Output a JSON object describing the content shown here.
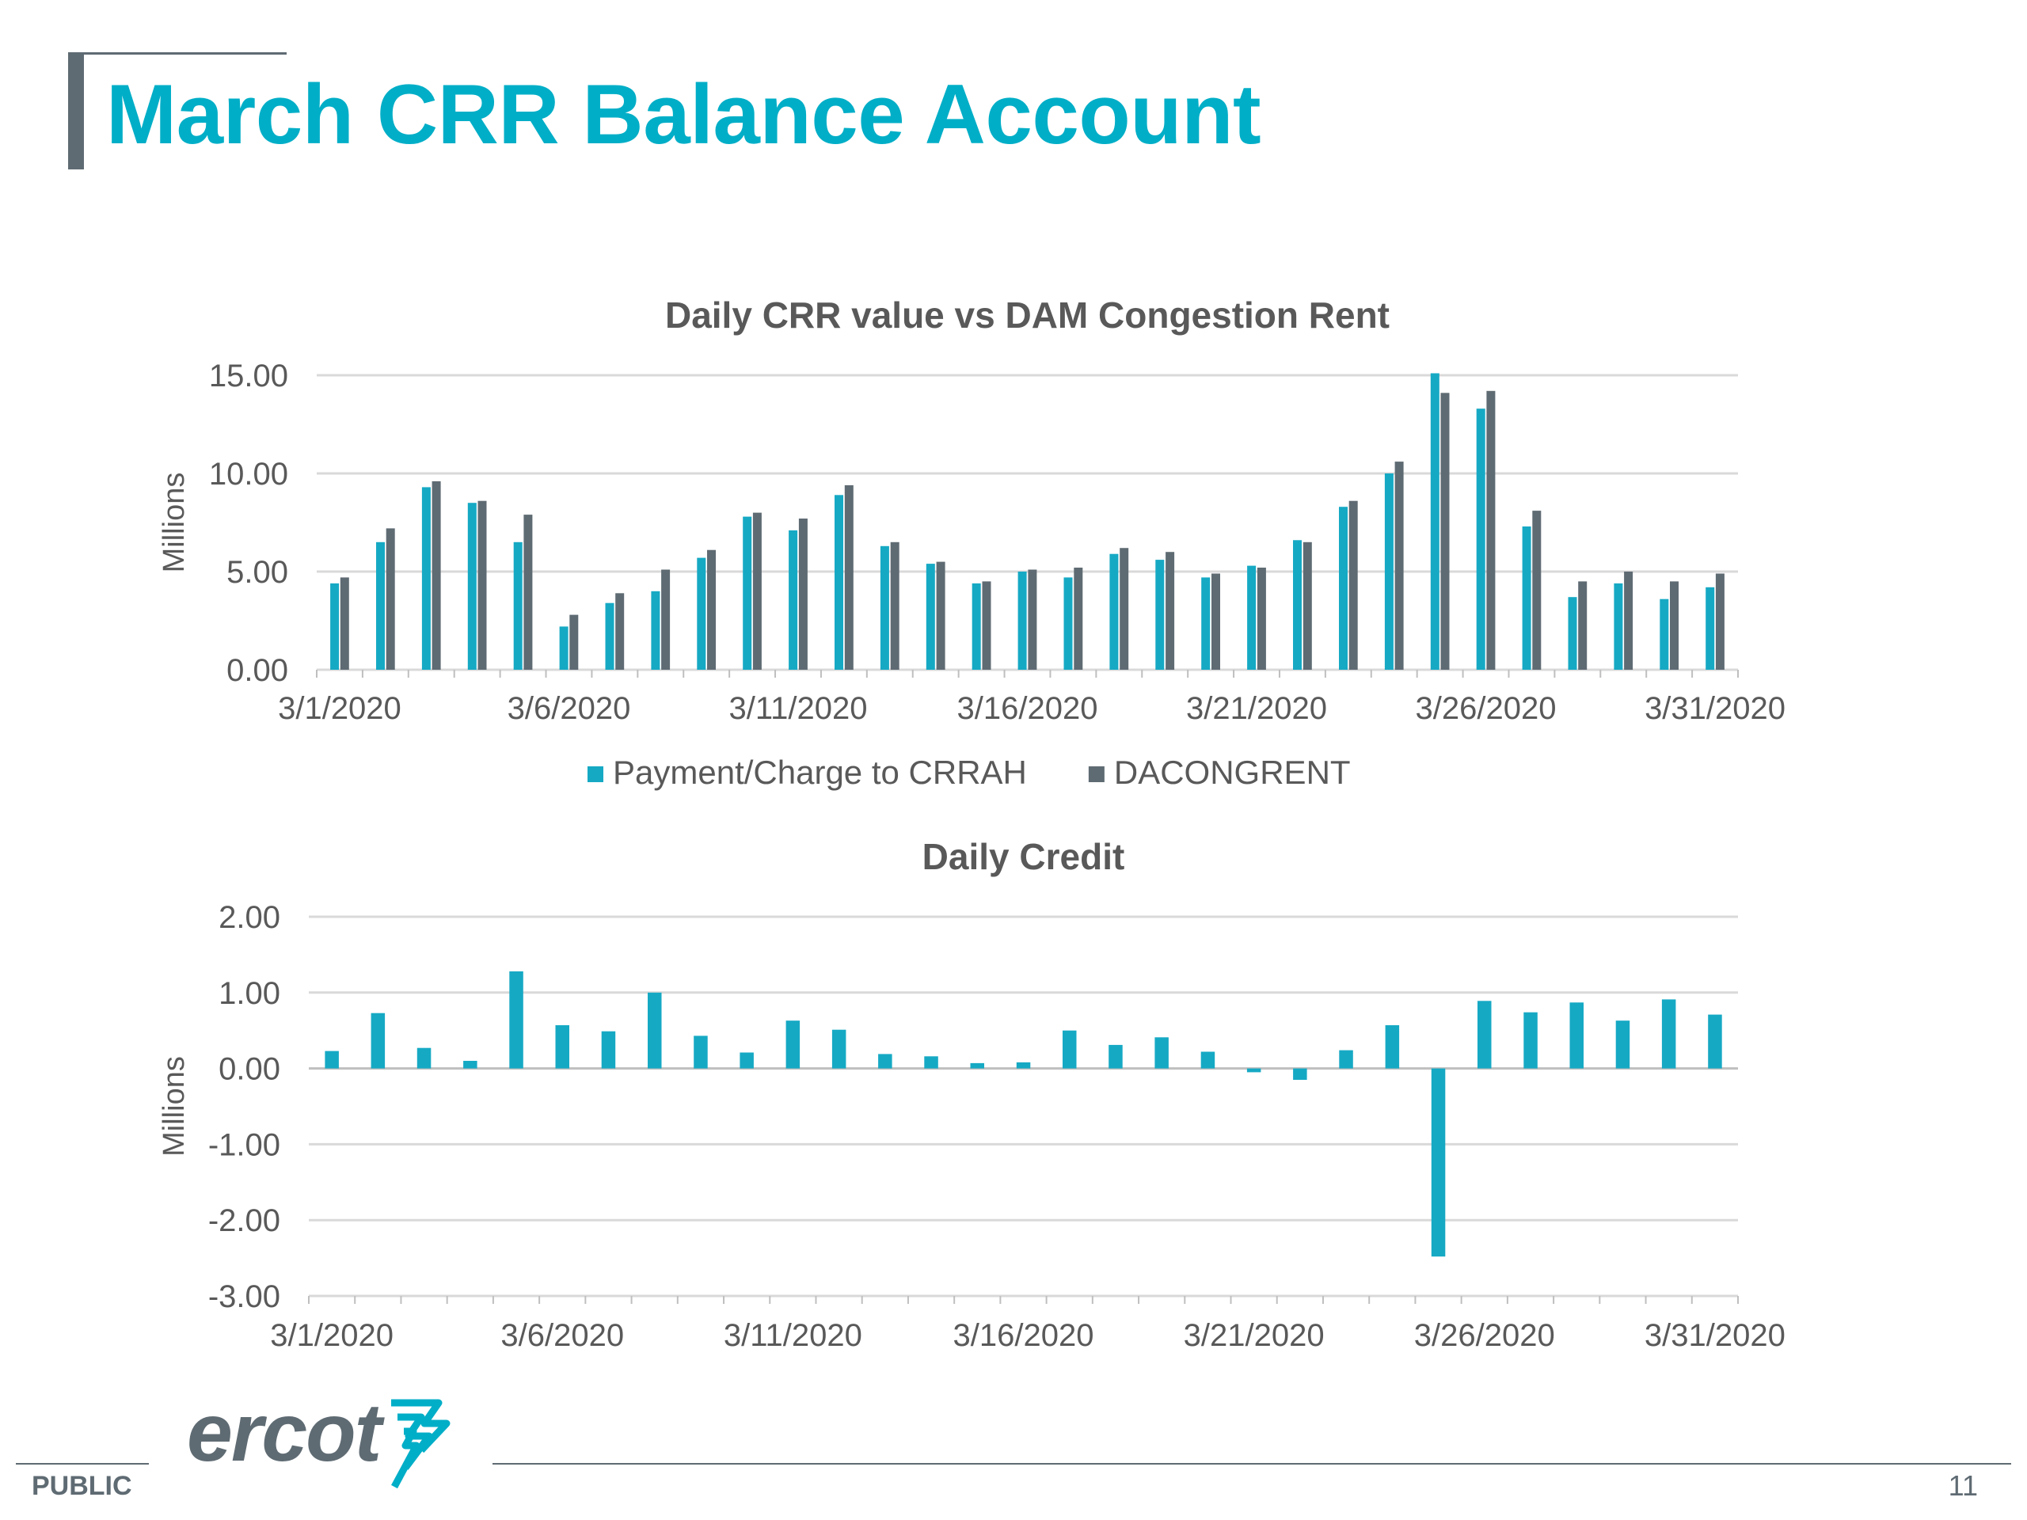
{
  "slide": {
    "title": "March CRR Balance Account",
    "footer_label": "PUBLIC",
    "page_number": "11",
    "logo_text": "ercot"
  },
  "colors": {
    "accent": "#00aec7",
    "series_payment": "#16a9c4",
    "series_dacongrent": "#5f6b73",
    "text_gray": "#595959",
    "grid": "#d9d9d9"
  },
  "chart_data": [
    {
      "type": "bar",
      "title": "Daily CRR value vs DAM Congestion Rent",
      "ylabel": "Millions",
      "xlabel": "",
      "ylim": [
        0,
        15
      ],
      "y_ticks": [
        "0.00",
        "5.00",
        "10.00",
        "15.00"
      ],
      "x_tick_labels": [
        "3/1/2020",
        "3/6/2020",
        "3/11/2020",
        "3/16/2020",
        "3/21/2020",
        "3/26/2020",
        "3/31/2020"
      ],
      "categories": [
        "3/1/2020",
        "3/2/2020",
        "3/3/2020",
        "3/4/2020",
        "3/5/2020",
        "3/6/2020",
        "3/7/2020",
        "3/8/2020",
        "3/9/2020",
        "3/10/2020",
        "3/11/2020",
        "3/12/2020",
        "3/13/2020",
        "3/14/2020",
        "3/15/2020",
        "3/16/2020",
        "3/17/2020",
        "3/18/2020",
        "3/19/2020",
        "3/20/2020",
        "3/21/2020",
        "3/22/2020",
        "3/23/2020",
        "3/24/2020",
        "3/25/2020",
        "3/26/2020",
        "3/27/2020",
        "3/28/2020",
        "3/29/2020",
        "3/30/2020",
        "3/31/2020"
      ],
      "series": [
        {
          "name": "Payment/Charge to CRRAH",
          "values": [
            4.4,
            6.5,
            9.3,
            8.5,
            6.5,
            2.2,
            3.4,
            4.0,
            5.7,
            7.8,
            7.1,
            8.9,
            6.3,
            5.4,
            4.4,
            5.0,
            4.7,
            5.9,
            5.6,
            4.7,
            5.3,
            6.6,
            8.3,
            10.0,
            15.1,
            13.3,
            7.3,
            3.7,
            4.4,
            3.6,
            4.2
          ]
        },
        {
          "name": "DACONGRENT",
          "values": [
            4.7,
            7.2,
            9.6,
            8.6,
            7.9,
            2.8,
            3.9,
            5.1,
            6.1,
            8.0,
            7.7,
            9.4,
            6.5,
            5.5,
            4.5,
            5.1,
            5.2,
            6.2,
            6.0,
            4.9,
            5.2,
            6.5,
            8.6,
            10.6,
            14.1,
            14.2,
            8.1,
            4.5,
            5.0,
            4.5,
            4.9
          ]
        }
      ],
      "legend": "bottom",
      "grid": true
    },
    {
      "type": "bar",
      "title": "Daily Credit",
      "ylabel": "Millions",
      "xlabel": "",
      "ylim": [
        -3,
        2
      ],
      "y_ticks": [
        "-3.00",
        "-2.00",
        "-1.00",
        "0.00",
        "1.00",
        "2.00"
      ],
      "x_tick_labels": [
        "3/1/2020",
        "3/6/2020",
        "3/11/2020",
        "3/16/2020",
        "3/21/2020",
        "3/26/2020",
        "3/31/2020"
      ],
      "categories": [
        "3/1/2020",
        "3/2/2020",
        "3/3/2020",
        "3/4/2020",
        "3/5/2020",
        "3/6/2020",
        "3/7/2020",
        "3/8/2020",
        "3/9/2020",
        "3/10/2020",
        "3/11/2020",
        "3/12/2020",
        "3/13/2020",
        "3/14/2020",
        "3/15/2020",
        "3/16/2020",
        "3/17/2020",
        "3/18/2020",
        "3/19/2020",
        "3/20/2020",
        "3/21/2020",
        "3/22/2020",
        "3/23/2020",
        "3/24/2020",
        "3/25/2020",
        "3/26/2020",
        "3/27/2020",
        "3/28/2020",
        "3/29/2020",
        "3/30/2020",
        "3/31/2020"
      ],
      "values": [
        0.23,
        0.73,
        0.27,
        0.1,
        1.28,
        0.57,
        0.49,
        1.0,
        0.43,
        0.21,
        0.63,
        0.51,
        0.19,
        0.16,
        0.07,
        0.08,
        0.5,
        0.31,
        0.41,
        0.22,
        -0.05,
        -0.15,
        0.24,
        0.57,
        -2.48,
        0.89,
        0.74,
        0.87,
        0.63,
        0.91,
        0.71
      ],
      "legend": "none",
      "grid": true
    }
  ]
}
